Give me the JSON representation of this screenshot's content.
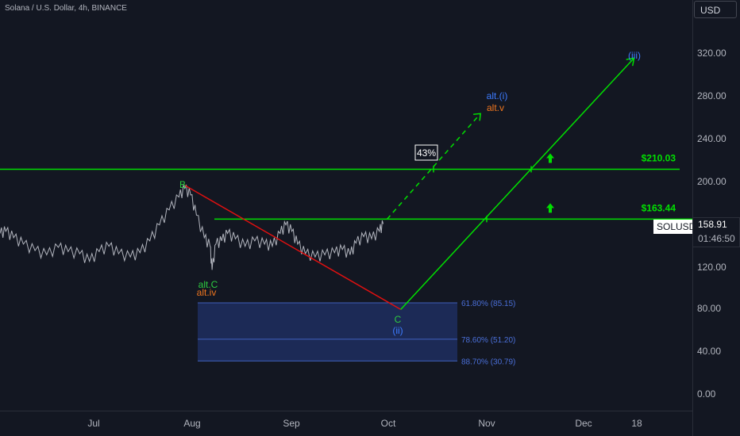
{
  "header": {
    "title": "Solana / U.S. Dollar, 4h, BINANCE"
  },
  "axis": {
    "currency_button": "USD",
    "y_ticks": [
      "320.00",
      "280.00",
      "240.00",
      "200.00",
      "120.00",
      "80.00",
      "40.00",
      "0.00"
    ],
    "x_ticks": [
      "Jul",
      "Aug",
      "Sep",
      "Oct",
      "Nov",
      "Dec",
      "18"
    ]
  },
  "price_tag": {
    "symbol": "SOLUSD",
    "price": "158.91",
    "countdown": "01:46:50"
  },
  "colors": {
    "background": "#131722",
    "price_line": "#b2b5be",
    "support_lines": "#00e000",
    "correction_line": "#e01010",
    "zone_fill": "#1c2b5a",
    "zone_text": "#4a6fd8",
    "label_green": "#2ecc40",
    "label_orange": "#f0761e",
    "label_blue": "#3d7bff"
  },
  "chart_data": {
    "type": "line",
    "title": "Solana / U.S. Dollar, 4h, BINANCE",
    "y_unit": "USD",
    "ylim": [
      -15,
      350
    ],
    "x_ticks": [
      "Jul",
      "Aug",
      "Sep",
      "Oct",
      "Nov",
      "Dec",
      "18"
    ],
    "series": [
      {
        "name": "SOLUSD",
        "points": [
          [
            0,
            150
          ],
          [
            0.15,
            152
          ],
          [
            0.35,
            146
          ],
          [
            0.6,
            140
          ],
          [
            0.9,
            134
          ],
          [
            1.2,
            130
          ],
          [
            1.5,
            137
          ],
          [
            1.75,
            133
          ],
          [
            2.05,
            131
          ],
          [
            2.3,
            124
          ],
          [
            2.55,
            133
          ],
          [
            2.8,
            138
          ],
          [
            3.05,
            131
          ],
          [
            3.35,
            128
          ],
          [
            3.6,
            132
          ],
          [
            3.85,
            143
          ],
          [
            4.1,
            158
          ],
          [
            4.35,
            172
          ],
          [
            4.6,
            184
          ],
          [
            4.75,
            192
          ],
          [
            4.9,
            186
          ],
          [
            5.05,
            167
          ],
          [
            5.25,
            146
          ],
          [
            5.4,
            138
          ],
          [
            5.45,
            116
          ],
          [
            5.55,
            140
          ],
          [
            5.7,
            143
          ],
          [
            5.85,
            150
          ],
          [
            6.05,
            145
          ],
          [
            6.3,
            138
          ],
          [
            6.55,
            143
          ],
          [
            6.8,
            140
          ],
          [
            7.0,
            138
          ],
          [
            7.2,
            150
          ],
          [
            7.35,
            158
          ],
          [
            7.5,
            152
          ],
          [
            7.65,
            140
          ],
          [
            7.85,
            131
          ],
          [
            8.1,
            128
          ],
          [
            8.35,
            130
          ],
          [
            8.6,
            132
          ],
          [
            8.8,
            135
          ],
          [
            9.0,
            130
          ],
          [
            9.15,
            141
          ],
          [
            9.35,
            147
          ],
          [
            9.55,
            145
          ],
          [
            9.75,
            152
          ],
          [
            9.85,
            158.9
          ]
        ]
      }
    ],
    "levels": [
      {
        "label": "$210.03",
        "value": 210.03
      },
      {
        "label": "$163.44",
        "value": 163.44
      }
    ],
    "fib_zone": {
      "top": 85.15,
      "bottom": 30.79,
      "lines": [
        {
          "label": "61.80% (85.15)",
          "value": 85.15
        },
        {
          "label": "78.60% (51.20)",
          "value": 51.2
        },
        {
          "label": "88.70% (30.79)",
          "value": 30.79
        }
      ]
    },
    "waves": {
      "correction": [
        [
          4.75,
          195
        ],
        [
          10.3,
          79
        ]
      ],
      "main_impulse": [
        [
          10.3,
          79
        ],
        [
          16.3,
          314
        ]
      ],
      "alt_impulse": [
        [
          9.95,
          163.44
        ],
        [
          12.35,
          262
        ]
      ]
    },
    "labels": {
      "b": "B",
      "alt_c": "alt.C",
      "alt_iv": "alt.iv",
      "c": "C",
      "ii": "(ii)",
      "iii": "(iii)",
      "alt_i": "alt.(i)",
      "alt_v": "alt.v",
      "percent": "43%"
    }
  }
}
